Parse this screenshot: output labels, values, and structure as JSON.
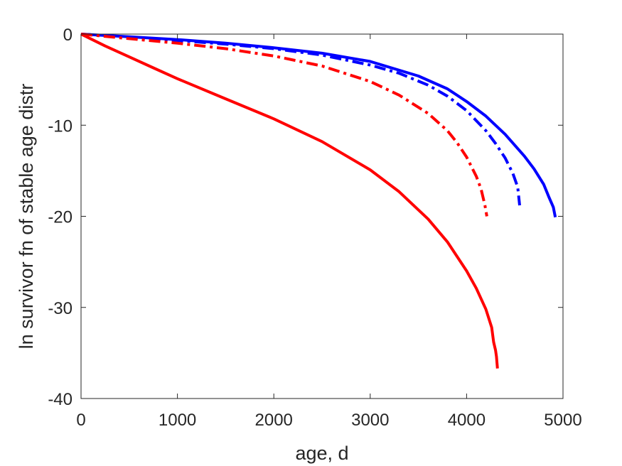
{
  "chart_data": {
    "type": "line",
    "xlabel": "age, d",
    "ylabel": "ln survivor fn of stable age distr",
    "xlim": [
      0,
      5000
    ],
    "ylim": [
      -40,
      0
    ],
    "xticks": [
      0,
      1000,
      2000,
      3000,
      4000,
      5000
    ],
    "yticks": [
      0,
      -10,
      -20,
      -30,
      -40
    ],
    "xtick_labels": [
      "0",
      "1000",
      "2000",
      "3000",
      "4000",
      "5000"
    ],
    "ytick_labels": [
      "0",
      "-10",
      "-20",
      "-30",
      "-40"
    ],
    "grid": false,
    "box": true,
    "series": [
      {
        "color": "#0000ff",
        "style": "solid",
        "x": [
          0,
          500,
          1000,
          1500,
          2000,
          2500,
          3000,
          3500,
          3800,
          4000,
          4200,
          4400,
          4600,
          4700,
          4800,
          4850,
          4900,
          4920
        ],
        "y": [
          0,
          -0.3,
          -0.6,
          -1.0,
          -1.5,
          -2.1,
          -3.0,
          -4.6,
          -6.0,
          -7.4,
          -9.0,
          -11.0,
          -13.4,
          -14.8,
          -16.5,
          -17.8,
          -19.0,
          -20.1
        ]
      },
      {
        "color": "#0000ff",
        "style": "dashdot",
        "x": [
          0,
          500,
          1000,
          1500,
          2000,
          2500,
          3000,
          3300,
          3600,
          3800,
          4000,
          4200,
          4300,
          4400,
          4480,
          4530,
          4550
        ],
        "y": [
          0,
          -0.35,
          -0.7,
          -1.1,
          -1.6,
          -2.3,
          -3.4,
          -4.3,
          -5.6,
          -6.8,
          -8.4,
          -10.6,
          -12.0,
          -13.6,
          -15.3,
          -16.8,
          -18.8
        ]
      },
      {
        "color": "#ff0000",
        "style": "dashdot",
        "x": [
          0,
          500,
          1000,
          1500,
          2000,
          2500,
          3000,
          3300,
          3600,
          3800,
          3900,
          4000,
          4100,
          4150,
          4190,
          4210
        ],
        "y": [
          0,
          -0.5,
          -1.0,
          -1.6,
          -2.4,
          -3.5,
          -5.2,
          -6.7,
          -8.7,
          -10.6,
          -11.9,
          -13.5,
          -15.6,
          -17.0,
          -18.8,
          -20.0
        ]
      },
      {
        "color": "#ff0000",
        "style": "solid",
        "x": [
          0,
          250,
          500,
          750,
          1000,
          1500,
          2000,
          2500,
          3000,
          3300,
          3600,
          3800,
          4000,
          4100,
          4200,
          4260,
          4280,
          4300,
          4310,
          4320
        ],
        "y": [
          0,
          -1.3,
          -2.5,
          -3.7,
          -4.9,
          -7.1,
          -9.3,
          -11.8,
          -14.9,
          -17.3,
          -20.3,
          -22.8,
          -26.0,
          -27.9,
          -30.2,
          -32.2,
          -33.8,
          -34.7,
          -35.4,
          -36.7
        ]
      }
    ]
  }
}
